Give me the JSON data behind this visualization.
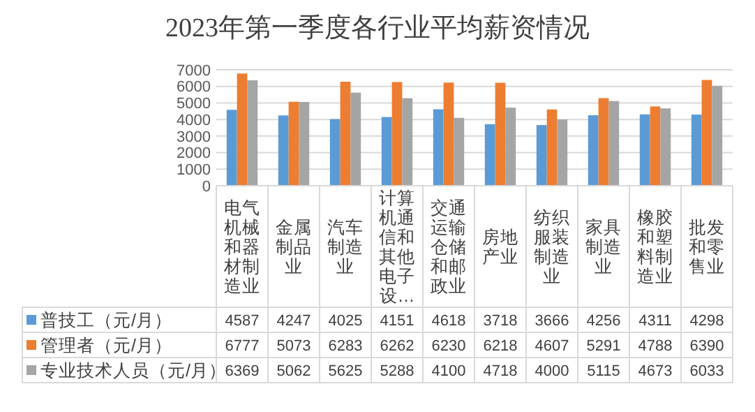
{
  "chart_data": {
    "type": "bar",
    "title": "2023年第一季度各行业平均薪资情况",
    "categories": [
      "电气机械和器材制造业",
      "金属制品业",
      "汽车制造业",
      "计算机通信和其他电子设…",
      "交通运输仓储和邮政业",
      "房地产业",
      "纺织服装制造业",
      "家具制造业",
      "橡胶和塑料制造业",
      "批发和零售业"
    ],
    "series": [
      {
        "name": "普技工（元/月）",
        "color": "#5b9bd5",
        "values": [
          4587,
          4247,
          4025,
          4151,
          4618,
          3718,
          3666,
          4256,
          4311,
          4298
        ]
      },
      {
        "name": "管理者（元/月）",
        "color": "#ed7d31",
        "values": [
          6777,
          5073,
          6283,
          6262,
          6230,
          6218,
          4607,
          5291,
          4788,
          6390
        ]
      },
      {
        "name": "专业技术人员（元/月）",
        "color": "#a5a5a5",
        "values": [
          6369,
          5062,
          5625,
          5288,
          4100,
          4718,
          4000,
          5115,
          4673,
          6033
        ]
      }
    ],
    "ylim": [
      0,
      7000
    ],
    "yticks": [
      0,
      1000,
      2000,
      3000,
      4000,
      5000,
      6000,
      7000
    ],
    "grid": "y",
    "legend": "bottom",
    "data_labels": true
  }
}
